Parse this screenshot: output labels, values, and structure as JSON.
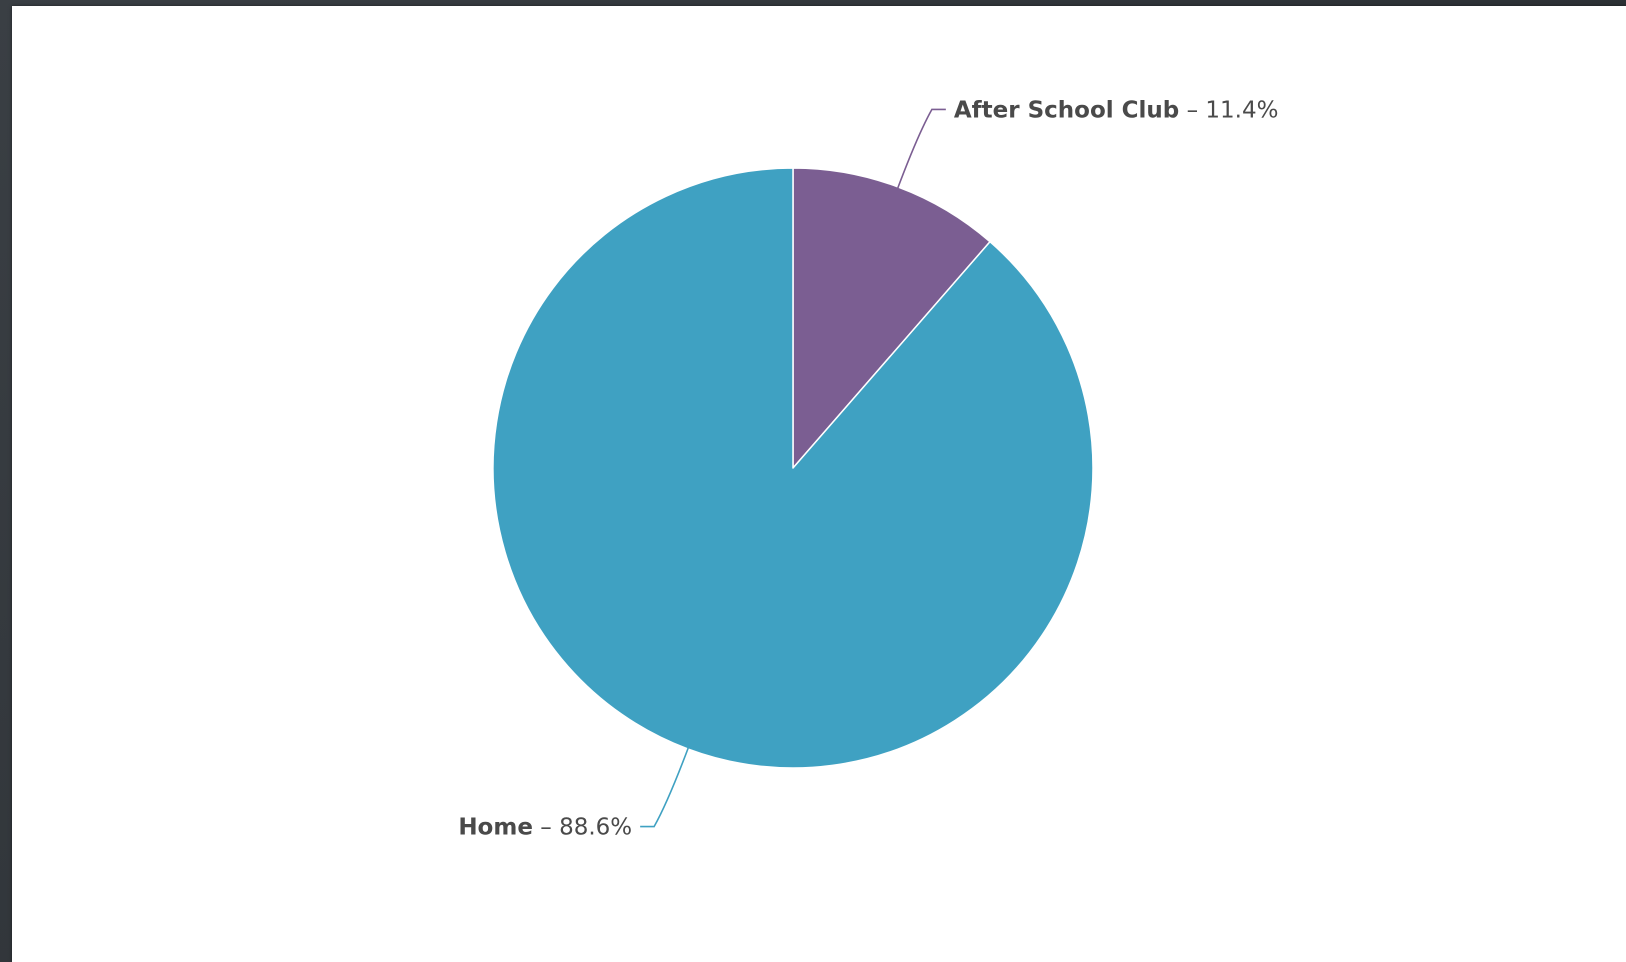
{
  "chart_data": {
    "type": "pie",
    "title": "",
    "series": [
      {
        "slices": [
          {
            "label": "After School Club",
            "value": 11.4,
            "value_text": "11.4%",
            "color": "#7b5e92"
          },
          {
            "label": "Home",
            "value": 88.6,
            "value_text": "88.6%",
            "color": "#3fa1c2"
          }
        ]
      }
    ],
    "start_angle_deg": 0,
    "direction": "clockwise",
    "label_separator": " – ",
    "label_color": "#4a4a4a",
    "slice_border_color": "#ffffff"
  }
}
